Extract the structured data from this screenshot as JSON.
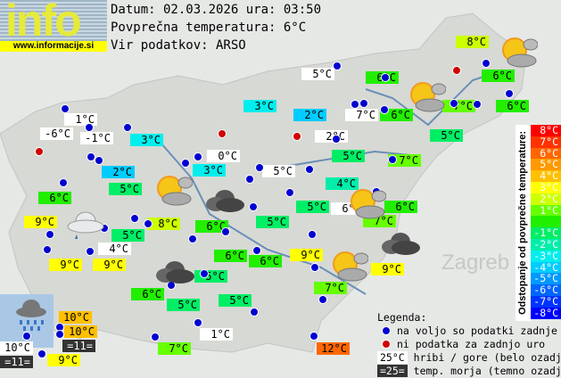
{
  "logo": {
    "word": "info",
    "url": "www.informacije.si"
  },
  "header": {
    "date_line": "Datum: 02.03.2026 ura: 03:50",
    "avg_line": "Povprečna temperatura: 6°C",
    "source_line": "Vir podatkov: ARSO"
  },
  "colors": {
    "white": "#ffffff",
    "dark": "#333333",
    "p6": "#ff6600",
    "p4": "#ffc000",
    "p3": "#ffff00",
    "p2": "#ccff00",
    "p1": "#66ff00",
    "z0": "#22ee00",
    "m1": "#00ee66",
    "m2": "#00eeaa",
    "m3": "#00eeee",
    "m4": "#00ccff",
    "dot_ok": "#0000d0",
    "dot_missing": "#d00000"
  },
  "stations": [
    {
      "t": "8°C",
      "c": "p2"
    },
    {
      "t": "5°C",
      "c": "white"
    },
    {
      "t": "6°C",
      "c": "z0"
    },
    {
      "t": "6°C",
      "c": "z0"
    },
    {
      "t": "3°C",
      "c": "m3"
    },
    {
      "t": "2°C",
      "c": "m4"
    },
    {
      "t": "7°C",
      "c": "white"
    },
    {
      "t": "6°C",
      "c": "z0"
    },
    {
      "t": "7°C",
      "c": "p1"
    },
    {
      "t": "6°C",
      "c": "z0"
    },
    {
      "t": "1°C",
      "c": "white"
    },
    {
      "t": "-6°C",
      "c": "white"
    },
    {
      "t": "-1°C",
      "c": "white"
    },
    {
      "t": "3°C",
      "c": "m3"
    },
    {
      "t": "2°C",
      "c": "white"
    },
    {
      "t": "5°C",
      "c": "m1"
    },
    {
      "t": "5°C",
      "c": "m1"
    },
    {
      "t": "7°C",
      "c": "p1"
    },
    {
      "t": "0°C",
      "c": "white"
    },
    {
      "t": "3°C",
      "c": "m3"
    },
    {
      "t": "2°C",
      "c": "m4"
    },
    {
      "t": "5°C",
      "c": "white"
    },
    {
      "t": "5°C",
      "c": "m1"
    },
    {
      "t": "4°C",
      "c": "m2"
    },
    {
      "t": "6°C",
      "c": "z0"
    },
    {
      "t": "5°C",
      "c": "m1"
    },
    {
      "t": "6°C",
      "c": "white"
    },
    {
      "t": "7°C",
      "c": "p1"
    },
    {
      "t": "6°C",
      "c": "z0"
    },
    {
      "t": "9°C",
      "c": "p3"
    },
    {
      "t": "8°C",
      "c": "p2"
    },
    {
      "t": "5°C",
      "c": "m1"
    },
    {
      "t": "6°C",
      "c": "z0"
    },
    {
      "t": "5°C",
      "c": "m1"
    },
    {
      "t": "4°C",
      "c": "white"
    },
    {
      "t": "9°C",
      "c": "p3"
    },
    {
      "t": "9°C",
      "c": "p3"
    },
    {
      "t": "6°C",
      "c": "z0"
    },
    {
      "t": "6°C",
      "c": "z0"
    },
    {
      "t": "9°C",
      "c": "p3"
    },
    {
      "t": "9°C",
      "c": "p3"
    },
    {
      "t": "7°C",
      "c": "p1"
    },
    {
      "t": "6°C",
      "c": "z0"
    },
    {
      "t": "5°C",
      "c": "m1"
    },
    {
      "t": "5°C",
      "c": "m1"
    },
    {
      "t": "5°C",
      "c": "m1"
    },
    {
      "t": "10°C",
      "c": "p4"
    },
    {
      "t": "10°C",
      "c": "p4"
    },
    {
      "t": "=11=",
      "c": "dark"
    },
    {
      "t": "10°C",
      "c": "white"
    },
    {
      "t": "=11=",
      "c": "dark"
    },
    {
      "t": "9°C",
      "c": "p3"
    },
    {
      "t": "1°C",
      "c": "white"
    },
    {
      "t": "7°C",
      "c": "p1"
    },
    {
      "t": "12°C",
      "c": "p6"
    }
  ],
  "weather_icons": [
    "partly-cloudy",
    "partly-cloudy",
    "partly-cloudy",
    "partly-cloudy",
    "partly-cloudy",
    "overcast",
    "overcast",
    "overcast",
    "cloudy-drizzle",
    "rain"
  ],
  "scale": {
    "title": "Odstopanje od povprečne temperature:",
    "items": [
      {
        "label": "8°C",
        "color": "#ff0000"
      },
      {
        "label": "7°C",
        "color": "#ff3300"
      },
      {
        "label": "6°C",
        "color": "#ff6600"
      },
      {
        "label": "5°C",
        "color": "#ff9900"
      },
      {
        "label": "4°C",
        "color": "#ffc000"
      },
      {
        "label": "3°C",
        "color": "#ffff00"
      },
      {
        "label": "2°C",
        "color": "#ccff00"
      },
      {
        "label": "1°C",
        "color": "#66ff00"
      },
      {
        "label": "",
        "color": "#22ee00"
      },
      {
        "label": "-1°C",
        "color": "#00ee66"
      },
      {
        "label": "-2°C",
        "color": "#00eeaa"
      },
      {
        "label": "-3°C",
        "color": "#00eeee"
      },
      {
        "label": "-4°C",
        "color": "#00ccff"
      },
      {
        "label": "-5°C",
        "color": "#0099ff"
      },
      {
        "label": "-6°C",
        "color": "#0066ff"
      },
      {
        "label": "-7°C",
        "color": "#0033ff"
      },
      {
        "label": "-8°C",
        "color": "#0000ff"
      }
    ]
  },
  "legend": {
    "title": "Legenda:",
    "ok": "na voljo so podatki zadnje ure",
    "missing": "ni podatka za zadnjo uro",
    "mountain_sample": "25°C",
    "mountain_text": "hribi / gore (belo ozadje)",
    "sea_sample": "=25=",
    "sea_text": "temp. morja (temno ozadje)"
  },
  "map_labels": {
    "city": "Zagreb"
  }
}
